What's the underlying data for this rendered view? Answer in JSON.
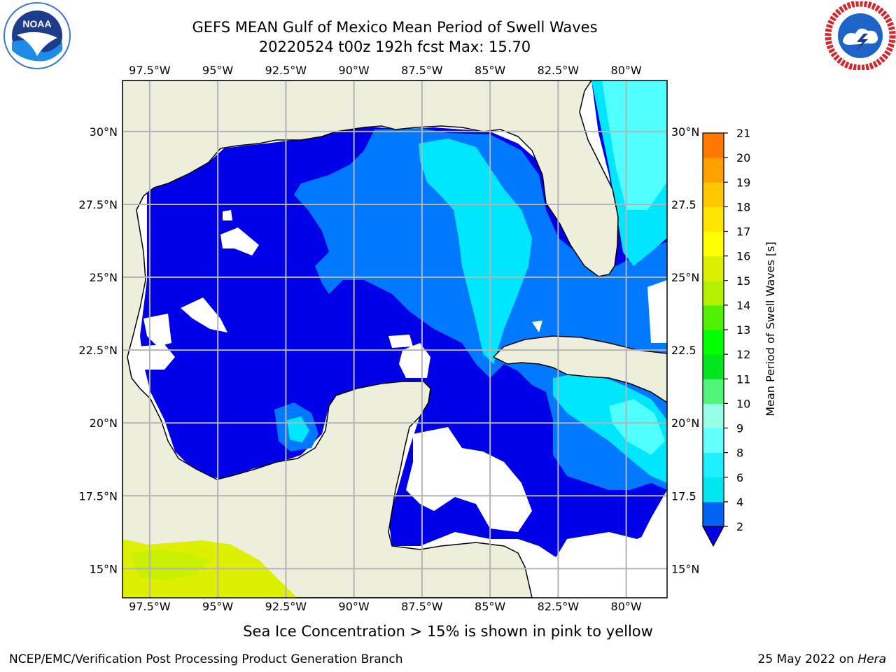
{
  "header": {
    "title_line1": "GEFS MEAN Gulf of Mexico Mean Period of Swell Waves",
    "title_line2": "20220524 t00z 192h fcst   Max: 15.70"
  },
  "logos": {
    "noaa": {
      "text": "NOAA",
      "icon": "noaa-logo-icon"
    },
    "nws": {
      "icon": "nws-logo-icon",
      "ring_text": "NATIONAL WEATHER SERVICE"
    }
  },
  "map": {
    "extent": {
      "lon_min": -98.5,
      "lon_max": -78.5,
      "lat_min": 14,
      "lat_max": 31.75
    },
    "lon_ticks": [
      {
        "lon": -97.5,
        "label": "97.5°W"
      },
      {
        "lon": -95,
        "label": "95°W"
      },
      {
        "lon": -92.5,
        "label": "92.5°W"
      },
      {
        "lon": -90,
        "label": "90°W"
      },
      {
        "lon": -87.5,
        "label": "87.5°W"
      },
      {
        "lon": -85,
        "label": "85°W"
      },
      {
        "lon": -82.5,
        "label": "82.5°W"
      },
      {
        "lon": -80,
        "label": "80°W"
      }
    ],
    "lat_ticks_left": [
      {
        "lat": 30,
        "label": "30°N"
      },
      {
        "lat": 27.5,
        "label": "27.5°N"
      },
      {
        "lat": 25,
        "label": "25°N"
      },
      {
        "lat": 22.5,
        "label": "22.5°N"
      },
      {
        "lat": 20,
        "label": "20°N"
      },
      {
        "lat": 17.5,
        "label": "17.5°N"
      },
      {
        "lat": 15,
        "label": "15°N"
      }
    ],
    "lat_ticks_right": [
      {
        "lat": 30,
        "label": "30°N"
      },
      {
        "lat": 27.5,
        "label": "27.5"
      },
      {
        "lat": 25,
        "label": "25°N"
      },
      {
        "lat": 22.5,
        "label": "22.5"
      },
      {
        "lat": 20,
        "label": "20°N"
      },
      {
        "lat": 17.5,
        "label": "17.5"
      },
      {
        "lat": 15,
        "label": "15°N"
      }
    ],
    "colors": {
      "land": "#eeeedc",
      "nodata": "#ffffff",
      "period_2_4": "#0000e8",
      "period_4_6": "#0078ff",
      "period_6_8": "#00e6ff",
      "period_8_9": "#50ffff",
      "sea_ice": "#ddf000",
      "grid": "#b4b4b4",
      "coast": "#000000"
    }
  },
  "colorbar": {
    "label": "Mean Period of Swell Waves [s]",
    "ticks": [
      "2",
      "4",
      "6",
      "8",
      "9",
      "10",
      "11",
      "12",
      "13",
      "14",
      "15",
      "16",
      "17",
      "18",
      "19",
      "20",
      "21"
    ],
    "colors": [
      "#0064f0",
      "#00e6f0",
      "#1ef0ff",
      "#64ffff",
      "#96ffe6",
      "#50f578",
      "#00e61e",
      "#00ff00",
      "#50f000",
      "#b4f000",
      "#dcf000",
      "#ffff00",
      "#ffe600",
      "#ffc800",
      "#ffa000",
      "#ff7800",
      "#ff5000",
      "#ff1e00",
      "#ff0000"
    ],
    "extend_color": "#0000e8"
  },
  "caption": "Sea Ice Concentration > 15% is shown in pink to yellow",
  "footer": {
    "left": "NCEP/EMC/Verification Post Processing Product Generation Branch",
    "right_prefix": "25 May 2022 on ",
    "right_host": "Hera"
  }
}
